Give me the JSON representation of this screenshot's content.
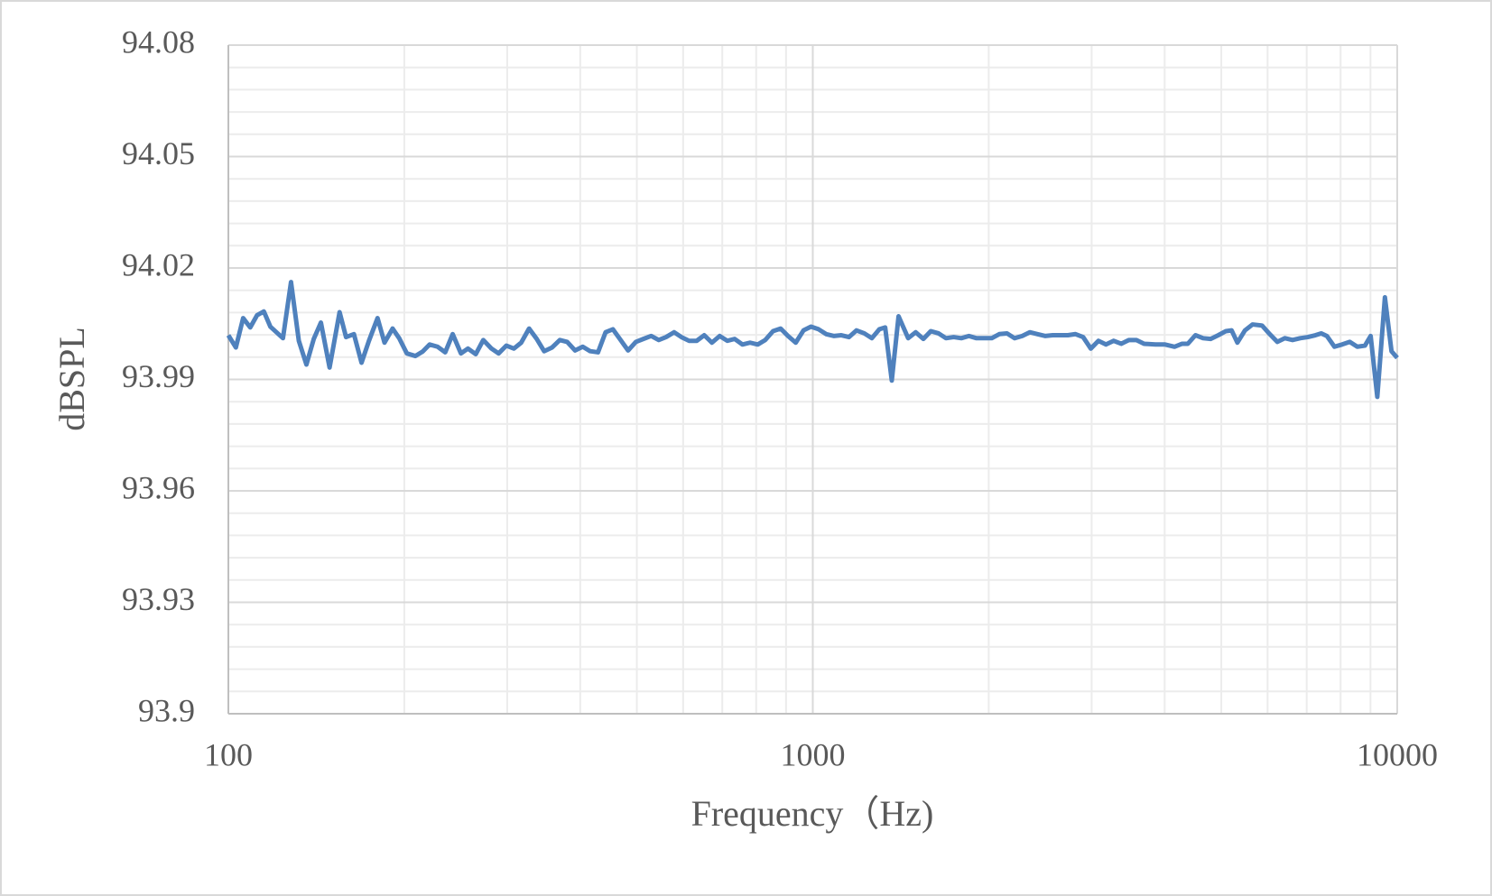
{
  "chart_data": {
    "type": "line",
    "x_label": "Frequency（Hz)",
    "y_label": "dBSPL",
    "log_x": true,
    "grid": true,
    "color": "#4f81bd",
    "xlim": [
      100,
      10000
    ],
    "xticks": [
      100,
      1000,
      10000
    ],
    "ylim": [
      93.9,
      94.08
    ],
    "yticks": [
      93.9,
      93.93,
      93.96,
      93.99,
      94.02,
      94.05,
      94.08
    ],
    "x": [
      100,
      103,
      106,
      109,
      112,
      115,
      118,
      124,
      128,
      132,
      136,
      140,
      144,
      149,
      155,
      159,
      164,
      169,
      174,
      180,
      185,
      191,
      196,
      202,
      209,
      215,
      221,
      228,
      235,
      242,
      250,
      257,
      265,
      273,
      282,
      290,
      299,
      308,
      317,
      327,
      337,
      347,
      358,
      369,
      380,
      392,
      404,
      416,
      429,
      442,
      455,
      469,
      483,
      498,
      513,
      529,
      545,
      561,
      579,
      596,
      614,
      633,
      652,
      672,
      693,
      714,
      735,
      758,
      781,
      805,
      829,
      855,
      881,
      907,
      935,
      964,
      993,
      1023,
      1054,
      1086,
      1119,
      1153,
      1188,
      1225,
      1262,
      1300,
      1330,
      1365,
      1402,
      1456,
      1500,
      1546,
      1592,
      1641,
      1690,
      1742,
      1795,
      1850,
      1906,
      1964,
      2024,
      2085,
      2149,
      2214,
      2282,
      2351,
      2423,
      2497,
      2573,
      2651,
      2732,
      2815,
      2901,
      2990,
      3081,
      3174,
      3271,
      3371,
      3473,
      3579,
      3688,
      3858,
      4006,
      4159,
      4285,
      4382,
      4516,
      4654,
      4795,
      4941,
      5092,
      5208,
      5327,
      5488,
      5655,
      5871,
      6051,
      6235,
      6425,
      6620,
      6823,
      7030,
      7244,
      7410,
      7579,
      7809,
      8047,
      8293,
      8545,
      8805,
      9006,
      9245,
      9526,
      9777,
      10000
    ],
    "values": [
      94.0019,
      93.9986,
      94.0065,
      94.004,
      94.0073,
      94.0083,
      94.0042,
      94.0011,
      94.0162,
      94.0004,
      93.994,
      94.0009,
      94.0053,
      93.9932,
      94.0081,
      94.0014,
      94.0022,
      93.9945,
      94.0004,
      94.0065,
      93.9999,
      94.0037,
      94.0011,
      93.997,
      93.9963,
      93.9975,
      93.9994,
      93.9988,
      93.9973,
      94.0022,
      93.997,
      93.9983,
      93.9968,
      94.0006,
      93.9983,
      93.997,
      93.9991,
      93.9983,
      93.9999,
      94.0037,
      94.0009,
      93.9976,
      93.9986,
      94.0006,
      94.0001,
      93.9978,
      93.9988,
      93.9976,
      93.9973,
      94.0027,
      94.0035,
      94.0006,
      93.9978,
      94.0001,
      94.0009,
      94.0017,
      94.0006,
      94.0014,
      94.0027,
      94.0014,
      94.0004,
      94.0004,
      94.0019,
      93.9999,
      94.0017,
      94.0004,
      94.0009,
      93.9994,
      93.9999,
      93.9994,
      94.0006,
      94.003,
      94.0037,
      94.0017,
      93.9999,
      94.0032,
      94.0042,
      94.0035,
      94.0022,
      94.0017,
      94.0019,
      94.0014,
      94.0032,
      94.0024,
      94.0011,
      94.0035,
      94.004,
      93.9897,
      94.007,
      94.0011,
      94.0027,
      94.0009,
      94.003,
      94.0024,
      94.0011,
      94.0014,
      94.0011,
      94.0017,
      94.0011,
      94.0011,
      94.0011,
      94.0022,
      94.0024,
      94.0011,
      94.0017,
      94.0027,
      94.0022,
      94.0017,
      94.0019,
      94.0019,
      94.0019,
      94.0022,
      94.0014,
      93.9983,
      94.0004,
      93.9994,
      94.0004,
      93.9996,
      94.0006,
      94.0006,
      93.9996,
      93.9994,
      93.9994,
      93.9988,
      93.9996,
      93.9996,
      94.0019,
      94.0011,
      94.0009,
      94.0019,
      94.003,
      94.0032,
      93.9999,
      94.0032,
      94.0048,
      94.0045,
      94.0022,
      94.0001,
      94.0011,
      94.0006,
      94.0011,
      94.0014,
      94.0019,
      94.0024,
      94.0017,
      93.9988,
      93.9994,
      94.0001,
      93.9988,
      93.9991,
      94.0017,
      93.9853,
      94.0121,
      93.9976,
      93.9958
    ]
  }
}
